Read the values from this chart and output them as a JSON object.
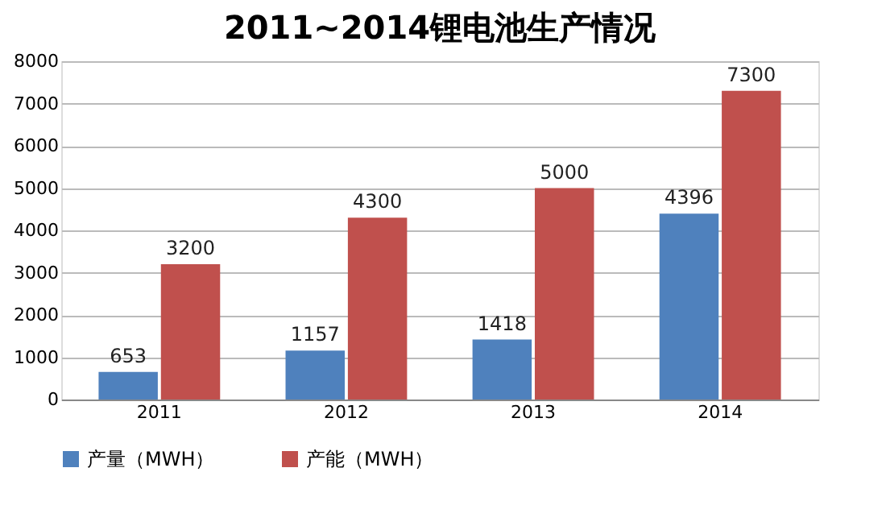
{
  "chart_data": {
    "type": "bar",
    "title": "2011~2014锂电池生产情况",
    "categories": [
      "2011",
      "2012",
      "2013",
      "2014"
    ],
    "series": [
      {
        "name": "产量（MWH）",
        "color": "#4f81bd",
        "values": [
          653,
          1157,
          1418,
          4396
        ]
      },
      {
        "name": "产能（MWH）",
        "color": "#c0504d",
        "values": [
          3200,
          4300,
          5000,
          7300
        ]
      }
    ],
    "ylim": [
      0,
      8000
    ],
    "yticks": [
      0,
      1000,
      2000,
      3000,
      4000,
      5000,
      6000,
      7000,
      8000
    ],
    "grid": "y",
    "legend": "bottom",
    "data_labels": true
  }
}
